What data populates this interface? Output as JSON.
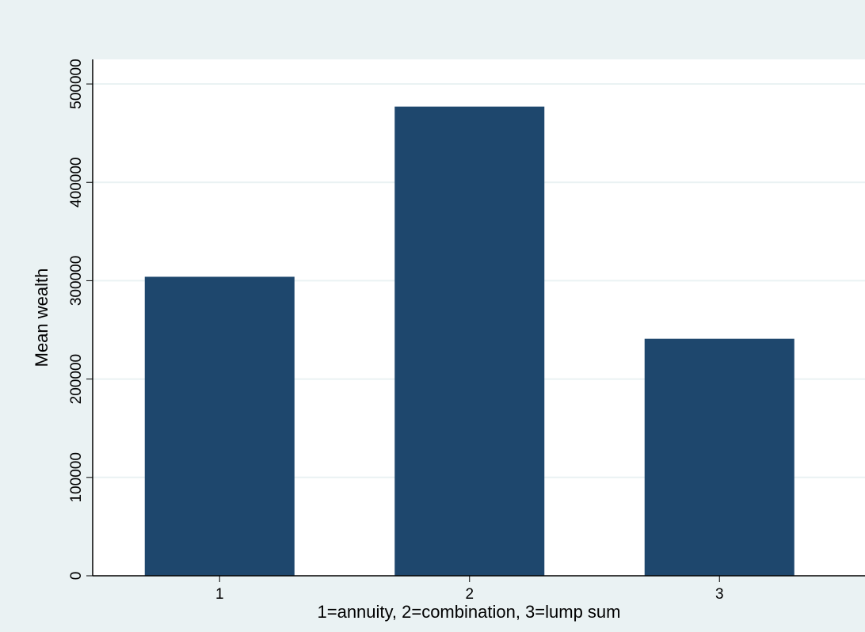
{
  "chart_data": {
    "type": "bar",
    "x_label": "1=annuity, 2=combination, 3=lump sum",
    "y_label": "Mean wealth",
    "categories": [
      "1",
      "2",
      "3"
    ],
    "values": [
      304000,
      477000,
      241000
    ],
    "color": "#1e476d",
    "ylim": [
      0,
      525000
    ],
    "yticks": [
      0,
      100000,
      200000,
      300000,
      400000,
      500000
    ],
    "grid": true
  }
}
